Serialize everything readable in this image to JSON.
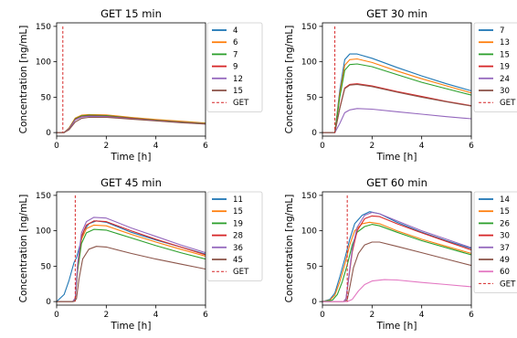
{
  "chart_data": [
    {
      "type": "line",
      "title": "GET 15 min",
      "xlabel": "Time [h]",
      "ylabel": "Concentration [ng/mL]",
      "xlim": [
        0,
        6
      ],
      "ylim": [
        -5,
        155
      ],
      "xticks": [
        0,
        2,
        4,
        6
      ],
      "yticks": [
        0,
        50,
        100,
        150
      ],
      "legend_position": "outside-right",
      "marker_line": {
        "name": "GET",
        "x": 0.25,
        "color": "#d62728",
        "style": "dashed"
      },
      "series": [
        {
          "name": "4",
          "color": "#1f77b4",
          "x": [
            0,
            0.3,
            0.5,
            0.75,
            1.0,
            1.3,
            2.0,
            3.0,
            4.0,
            5.0,
            6.0
          ],
          "values": [
            0,
            0,
            6,
            20,
            24,
            25,
            24.5,
            21,
            18,
            15.5,
            13
          ]
        },
        {
          "name": "6",
          "color": "#ff7f0e",
          "x": [
            0,
            0.3,
            0.5,
            0.75,
            1.0,
            1.3,
            2.0,
            3.0,
            4.0,
            5.0,
            6.0
          ],
          "values": [
            0,
            0,
            6.5,
            20.5,
            24.5,
            25.5,
            25,
            21.5,
            18.5,
            16,
            13.5
          ]
        },
        {
          "name": "7",
          "color": "#2ca02c",
          "x": [
            0,
            0.3,
            0.5,
            0.75,
            1.0,
            1.3,
            2.0,
            3.0,
            4.0,
            5.0,
            6.0
          ],
          "values": [
            0,
            0,
            6,
            19.5,
            23.5,
            24.5,
            24,
            20.5,
            17.5,
            15,
            12.8
          ]
        },
        {
          "name": "9",
          "color": "#d62728",
          "x": [
            0,
            0.3,
            0.5,
            0.75,
            1.0,
            1.3,
            2.0,
            3.0,
            4.0,
            5.0,
            6.0
          ],
          "values": [
            0,
            0,
            5.5,
            18.5,
            22.5,
            23.5,
            23,
            20,
            17,
            14.5,
            12.4
          ]
        },
        {
          "name": "12",
          "color": "#9467bd",
          "x": [
            0,
            0.3,
            0.5,
            0.75,
            1.0,
            1.3,
            2.0,
            3.0,
            4.0,
            5.0,
            6.0
          ],
          "values": [
            0,
            0,
            5,
            18,
            22,
            23,
            22.5,
            19.5,
            16.8,
            14.3,
            12.2
          ]
        },
        {
          "name": "15",
          "color": "#8c564b",
          "x": [
            0,
            0.3,
            0.5,
            0.75,
            1.0,
            1.3,
            2.0,
            3.0,
            4.0,
            5.0,
            6.0
          ],
          "values": [
            0,
            0,
            4,
            15,
            20,
            21.5,
            21.5,
            19,
            16.5,
            14,
            12
          ]
        }
      ]
    },
    {
      "type": "line",
      "title": "GET 30 min",
      "xlabel": "Time [h]",
      "ylabel": "Concentration [ng/mL]",
      "xlim": [
        0,
        6
      ],
      "ylim": [
        -5,
        155
      ],
      "xticks": [
        0,
        2,
        4,
        6
      ],
      "yticks": [
        0,
        50,
        100,
        150
      ],
      "legend_position": "outside-right",
      "marker_line": {
        "name": "GET",
        "x": 0.5,
        "color": "#d62728",
        "style": "dashed"
      },
      "series": [
        {
          "name": "7",
          "color": "#1f77b4",
          "x": [
            0,
            0.5,
            0.7,
            0.9,
            1.1,
            1.4,
            2.0,
            3.0,
            4.0,
            5.0,
            6.0
          ],
          "values": [
            0,
            0,
            60,
            103,
            111,
            111,
            105,
            92,
            80,
            69,
            59
          ]
        },
        {
          "name": "13",
          "color": "#ff7f0e",
          "x": [
            0,
            0.5,
            0.7,
            0.9,
            1.1,
            1.4,
            2.0,
            3.0,
            4.0,
            5.0,
            6.0
          ],
          "values": [
            0,
            0,
            55,
            95,
            103,
            104,
            99,
            87,
            76,
            66,
            56
          ]
        },
        {
          "name": "15",
          "color": "#2ca02c",
          "x": [
            0,
            0.5,
            0.7,
            0.9,
            1.1,
            1.4,
            2.0,
            3.0,
            4.0,
            5.0,
            6.0
          ],
          "values": [
            0,
            0,
            50,
            88,
            96,
            97,
            93,
            82,
            71,
            62,
            53
          ]
        },
        {
          "name": "19",
          "color": "#d62728",
          "x": [
            0,
            0.5,
            0.7,
            0.9,
            1.1,
            1.4,
            2.0,
            3.0,
            4.0,
            5.0,
            6.0
          ],
          "values": [
            0,
            0,
            35,
            63,
            68,
            69,
            66,
            58,
            51,
            44,
            38
          ]
        },
        {
          "name": "24",
          "color": "#9467bd",
          "x": [
            0,
            0.5,
            0.7,
            0.9,
            1.1,
            1.4,
            2.0,
            3.0,
            4.0,
            5.0,
            6.0
          ],
          "values": [
            0,
            0,
            13,
            28,
            32,
            34,
            33,
            29.5,
            26,
            22.5,
            19.5
          ]
        },
        {
          "name": "30",
          "color": "#8c564b",
          "x": [
            0,
            0.5,
            0.7,
            0.9,
            1.1,
            1.4,
            2.0,
            3.0,
            4.0,
            5.0,
            6.0
          ],
          "values": [
            0,
            0,
            34,
            62,
            67,
            68,
            65,
            57,
            50,
            43.5,
            37.5
          ]
        }
      ]
    },
    {
      "type": "line",
      "title": "GET 45 min",
      "xlabel": "Time [h]",
      "ylabel": "Concentration [ng/mL]",
      "xlim": [
        0,
        6
      ],
      "ylim": [
        -5,
        155
      ],
      "xticks": [
        0,
        2,
        4,
        6
      ],
      "yticks": [
        0,
        50,
        100,
        150
      ],
      "legend_position": "outside-right",
      "marker_line": {
        "name": "GET",
        "x": 0.75,
        "color": "#d62728",
        "style": "dashed"
      },
      "series": [
        {
          "name": "11",
          "color": "#1f77b4",
          "x": [
            0,
            0.3,
            0.5,
            0.7,
            0.8,
            0.9,
            1.1,
            1.3,
            1.6,
            2.0,
            3.0,
            4.0,
            5.0,
            6.0
          ],
          "values": [
            0,
            10,
            30,
            55,
            62,
            75,
            100,
            110,
            114,
            112,
            98,
            87,
            77,
            67
          ]
        },
        {
          "name": "15",
          "color": "#ff7f0e",
          "x": [
            0,
            0.65,
            0.75,
            0.85,
            1.0,
            1.2,
            1.5,
            2.0,
            3.0,
            4.0,
            5.0,
            6.0
          ],
          "values": [
            0,
            0,
            5,
            50,
            88,
            103,
            108,
            107,
            95,
            84,
            74,
            64
          ]
        },
        {
          "name": "19",
          "color": "#2ca02c",
          "x": [
            0,
            0.65,
            0.75,
            0.85,
            1.0,
            1.2,
            1.5,
            2.0,
            3.0,
            4.0,
            5.0,
            6.0
          ],
          "values": [
            0,
            0,
            4,
            45,
            82,
            97,
            102,
            101,
            90,
            79,
            69,
            60
          ]
        },
        {
          "name": "28",
          "color": "#d62728",
          "x": [
            0,
            0.65,
            0.75,
            0.85,
            1.0,
            1.2,
            1.5,
            2.0,
            3.0,
            4.0,
            5.0,
            6.0
          ],
          "values": [
            0,
            0,
            5,
            52,
            92,
            108,
            114,
            113,
            100,
            88,
            77,
            66
          ]
        },
        {
          "name": "36",
          "color": "#9467bd",
          "x": [
            0,
            0.65,
            0.75,
            0.85,
            1.0,
            1.2,
            1.5,
            2.0,
            3.0,
            4.0,
            5.0,
            6.0
          ],
          "values": [
            0,
            0,
            5,
            55,
            97,
            113,
            119,
            118,
            104,
            92,
            80,
            69
          ]
        },
        {
          "name": "45",
          "color": "#8c564b",
          "x": [
            0,
            0.7,
            0.8,
            0.9,
            1.05,
            1.3,
            1.6,
            2.0,
            3.0,
            4.0,
            5.0,
            6.0
          ],
          "values": [
            0,
            0,
            4,
            32,
            60,
            74,
            78,
            77,
            68,
            60,
            53,
            46
          ]
        }
      ]
    },
    {
      "type": "line",
      "title": "GET 60 min",
      "xlabel": "Time [h]",
      "ylabel": "Concentration [ng/mL]",
      "xlim": [
        0,
        6
      ],
      "ylim": [
        -5,
        155
      ],
      "xticks": [
        0,
        2,
        4,
        6
      ],
      "yticks": [
        0,
        50,
        100,
        150
      ],
      "legend_position": "outside-right",
      "marker_line": {
        "name": "GET",
        "x": 1.0,
        "color": "#d62728",
        "style": "dashed"
      },
      "series": [
        {
          "name": "14",
          "color": "#1f77b4",
          "x": [
            0,
            0.3,
            0.5,
            0.7,
            0.9,
            1.1,
            1.3,
            1.6,
            1.9,
            2.3,
            3.0,
            4.0,
            5.0,
            6.0
          ],
          "values": [
            0,
            3,
            12,
            35,
            60,
            88,
            110,
            122,
            127,
            124,
            112,
            98,
            86,
            75
          ]
        },
        {
          "name": "15",
          "color": "#ff7f0e",
          "x": [
            0,
            0.3,
            0.5,
            0.7,
            0.9,
            1.1,
            1.3,
            1.6,
            1.9,
            2.3,
            3.0,
            4.0,
            5.0,
            6.0
          ],
          "values": [
            0,
            2,
            9,
            28,
            52,
            80,
            100,
            110,
            112,
            110,
            100,
            88,
            78,
            68
          ]
        },
        {
          "name": "26",
          "color": "#2ca02c",
          "x": [
            0,
            0.4,
            0.6,
            0.8,
            1.0,
            1.2,
            1.4,
            1.7,
            2.0,
            2.3,
            3.0,
            4.0,
            5.0,
            6.0
          ],
          "values": [
            0,
            2,
            10,
            28,
            52,
            80,
            98,
            106,
            109,
            107,
            98,
            86,
            76,
            66
          ]
        },
        {
          "name": "30",
          "color": "#d62728",
          "x": [
            0,
            0.85,
            0.95,
            1.05,
            1.2,
            1.4,
            1.7,
            2.0,
            2.3,
            3.0,
            4.0,
            5.0,
            6.0
          ],
          "values": [
            0,
            0,
            4,
            30,
            70,
            100,
            117,
            121,
            120,
            110,
            97,
            85,
            73
          ]
        },
        {
          "name": "37",
          "color": "#9467bd",
          "x": [
            0,
            0.85,
            0.95,
            1.05,
            1.2,
            1.4,
            1.7,
            2.0,
            2.3,
            3.0,
            4.0,
            5.0,
            6.0
          ],
          "values": [
            0,
            0,
            4,
            32,
            74,
            105,
            122,
            126,
            124,
            114,
            100,
            88,
            76
          ]
        },
        {
          "name": "49",
          "color": "#8c564b",
          "x": [
            0,
            0.9,
            1.0,
            1.1,
            1.25,
            1.45,
            1.7,
            2.0,
            2.3,
            3.0,
            4.0,
            5.0,
            6.0
          ],
          "values": [
            0,
            0,
            3,
            20,
            48,
            68,
            80,
            84,
            84,
            78,
            69,
            60,
            51
          ]
        },
        {
          "name": "60",
          "color": "#e377c2",
          "x": [
            0,
            1.0,
            1.2,
            1.45,
            1.7,
            2.0,
            2.5,
            3.0,
            4.0,
            5.0,
            6.0
          ],
          "values": [
            0,
            0,
            3,
            15,
            24,
            29,
            31,
            30.5,
            27,
            24,
            21
          ]
        }
      ]
    }
  ]
}
